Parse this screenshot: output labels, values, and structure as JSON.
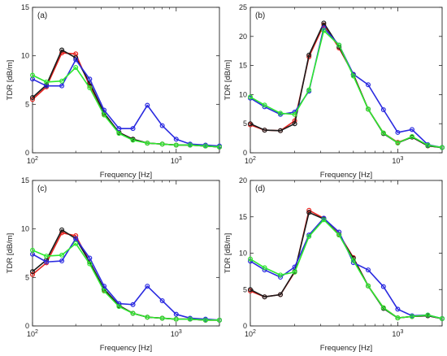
{
  "chart_data": [
    {
      "type": "line",
      "panel_label": "(a)",
      "xlabel": "Frequency [Hz]",
      "ylabel": "TDR [dB/m]",
      "xscale": "log",
      "xlim": [
        100,
        2000
      ],
      "ylim": [
        0,
        15
      ],
      "xticks": [
        {
          "value": 100,
          "base": "10",
          "exp": "2"
        },
        {
          "value": 1000,
          "base": "10",
          "exp": "3"
        }
      ],
      "yticks": [
        0,
        5,
        10,
        15
      ],
      "grid": false,
      "x": [
        100,
        125,
        160,
        200,
        250,
        315,
        400,
        500,
        630,
        800,
        1000,
        1250,
        1600,
        2000
      ],
      "series": [
        {
          "color": "#e8231f",
          "values": [
            5.5,
            6.8,
            10.3,
            10.2,
            6.9,
            4.0,
            2.1,
            1.4,
            1.0,
            0.9,
            0.8,
            0.8,
            0.7,
            0.6
          ]
        },
        {
          "color": "#1a1a1a",
          "values": [
            5.7,
            7.0,
            10.6,
            9.8,
            7.2,
            4.1,
            2.1,
            1.4,
            1.0,
            0.9,
            0.8,
            0.8,
            0.7,
            0.6
          ]
        },
        {
          "color": "#2a2ae0",
          "values": [
            7.6,
            6.9,
            6.9,
            9.6,
            7.6,
            4.4,
            2.5,
            2.5,
            4.9,
            2.8,
            1.4,
            0.9,
            0.8,
            0.7
          ]
        },
        {
          "color": "#2ee830",
          "values": [
            8.0,
            7.3,
            7.4,
            8.8,
            6.7,
            3.9,
            2.0,
            1.3,
            1.0,
            0.9,
            0.8,
            0.8,
            0.7,
            0.6
          ]
        }
      ]
    },
    {
      "type": "line",
      "panel_label": "(b)",
      "xlabel": "Frequency [Hz]",
      "ylabel": "TDR [dB/m]",
      "xscale": "log",
      "xlim": [
        100,
        2000
      ],
      "ylim": [
        0,
        25
      ],
      "xticks": [
        {
          "value": 100,
          "base": "10",
          "exp": "2"
        },
        {
          "value": 1000,
          "base": "10",
          "exp": "3"
        }
      ],
      "yticks": [
        0,
        5,
        10,
        15,
        20,
        25
      ],
      "grid": false,
      "x": [
        100,
        125,
        160,
        200,
        250,
        315,
        400,
        500,
        630,
        800,
        1000,
        1250,
        1600,
        2000
      ],
      "series": [
        {
          "color": "#e8231f",
          "values": [
            4.8,
            3.9,
            3.8,
            5.5,
            16.5,
            22.0,
            18.0,
            13.5,
            7.5,
            3.4,
            1.8,
            2.7,
            1.2,
            0.9
          ]
        },
        {
          "color": "#1a1a1a",
          "values": [
            5.0,
            3.9,
            3.8,
            5.0,
            16.8,
            22.3,
            18.2,
            13.4,
            7.5,
            3.3,
            1.7,
            2.7,
            1.2,
            0.9
          ]
        },
        {
          "color": "#2a2ae0",
          "values": [
            9.4,
            7.9,
            6.6,
            7.0,
            10.6,
            21.5,
            18.5,
            13.5,
            11.7,
            7.4,
            3.5,
            4.0,
            1.4,
            0.9
          ]
        },
        {
          "color": "#2ee830",
          "values": [
            9.6,
            8.2,
            6.8,
            6.6,
            10.8,
            21.0,
            18.5,
            13.2,
            7.5,
            3.4,
            1.7,
            2.8,
            1.3,
            0.9
          ]
        }
      ]
    },
    {
      "type": "line",
      "panel_label": "(c)",
      "xlabel": "Frequency [Hz]",
      "ylabel": "TDR [dB/m]",
      "xscale": "log",
      "xlim": [
        100,
        2000
      ],
      "ylim": [
        0,
        15
      ],
      "xticks": [
        {
          "value": 100,
          "base": "10",
          "exp": "2"
        },
        {
          "value": 1000,
          "base": "10",
          "exp": "3"
        }
      ],
      "yticks": [
        0,
        5,
        10,
        15
      ],
      "grid": false,
      "x": [
        100,
        125,
        160,
        200,
        250,
        315,
        400,
        500,
        630,
        800,
        1000,
        1250,
        1600,
        2000
      ],
      "series": [
        {
          "color": "#e8231f",
          "values": [
            5.3,
            6.5,
            9.6,
            9.3,
            6.6,
            3.7,
            2.1,
            1.3,
            0.9,
            0.8,
            0.7,
            0.7,
            0.6,
            0.6
          ]
        },
        {
          "color": "#1a1a1a",
          "values": [
            5.6,
            6.8,
            9.9,
            9.0,
            6.6,
            3.8,
            2.1,
            1.3,
            0.9,
            0.8,
            0.7,
            0.7,
            0.6,
            0.6
          ]
        },
        {
          "color": "#2a2ae0",
          "values": [
            7.4,
            6.6,
            6.7,
            9.0,
            7.0,
            4.1,
            2.3,
            2.2,
            4.1,
            2.6,
            1.2,
            0.8,
            0.7,
            0.6
          ]
        },
        {
          "color": "#2ee830",
          "values": [
            7.8,
            7.2,
            7.3,
            8.5,
            6.4,
            3.6,
            2.0,
            1.3,
            0.9,
            0.8,
            0.7,
            0.7,
            0.6,
            0.6
          ]
        }
      ]
    },
    {
      "type": "line",
      "panel_label": "(d)",
      "xlabel": "Frequency [Hz]",
      "ylabel": "TDR [dB/m]",
      "xscale": "log",
      "xlim": [
        100,
        2000
      ],
      "ylim": [
        0,
        20
      ],
      "xticks": [
        {
          "value": 100,
          "base": "10",
          "exp": "2"
        },
        {
          "value": 1000,
          "base": "10",
          "exp": "3"
        }
      ],
      "yticks": [
        0,
        5,
        10,
        15,
        20
      ],
      "grid": false,
      "x": [
        100,
        125,
        160,
        200,
        250,
        315,
        400,
        500,
        630,
        800,
        1000,
        1250,
        1600,
        2000
      ],
      "series": [
        {
          "color": "#e8231f",
          "values": [
            4.8,
            4.0,
            4.3,
            7.4,
            15.9,
            14.8,
            12.6,
            9.4,
            5.5,
            2.5,
            1.1,
            1.3,
            1.4,
            1.0
          ]
        },
        {
          "color": "#1a1a1a",
          "values": [
            5.0,
            4.0,
            4.3,
            7.5,
            15.6,
            14.7,
            12.5,
            9.3,
            5.5,
            2.4,
            1.1,
            1.3,
            1.4,
            1.0
          ]
        },
        {
          "color": "#2a2ae0",
          "values": [
            8.9,
            7.7,
            6.7,
            8.1,
            12.5,
            14.8,
            12.9,
            8.7,
            7.7,
            5.4,
            2.3,
            1.4,
            1.5,
            1.0
          ]
        },
        {
          "color": "#2ee830",
          "values": [
            9.2,
            8.0,
            7.0,
            7.4,
            12.3,
            14.6,
            12.5,
            9.0,
            5.5,
            2.5,
            1.1,
            1.3,
            1.5,
            1.0
          ]
        }
      ]
    }
  ]
}
